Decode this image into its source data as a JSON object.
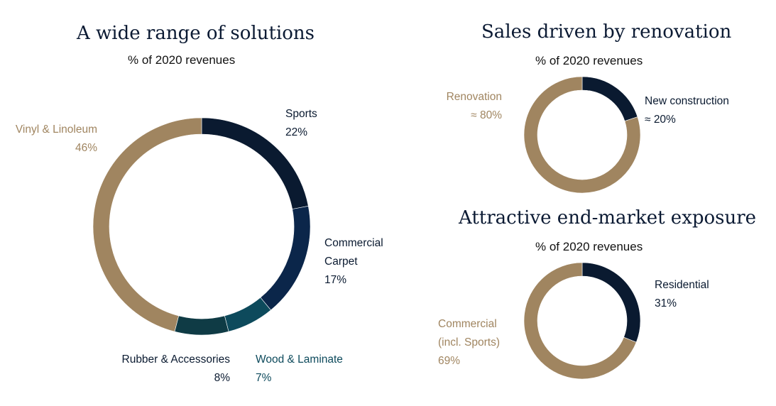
{
  "chart_data": [
    {
      "type": "pie",
      "title": "A wide range of solutions",
      "subtitle": "% of 2020 revenues",
      "slices": [
        {
          "label": [
            "Sports"
          ],
          "value_label": "22%",
          "value": 22,
          "color": "#0a1a30",
          "label_color": "#0a1a30"
        },
        {
          "label": [
            "Commercial",
            "Carpet"
          ],
          "value_label": "17%",
          "value": 17,
          "color": "#0b264a",
          "label_color": "#0a1a30"
        },
        {
          "label": [
            "Wood & Laminate"
          ],
          "value_label": "7%",
          "value": 7,
          "color": "#0d4a5c",
          "label_color": "#0d4a5c"
        },
        {
          "label": [
            "Rubber & Accessories"
          ],
          "value_label": "8%",
          "value": 8,
          "color": "#0f3b45",
          "label_color": "#0a1a30"
        },
        {
          "label": [
            "Vinyl & Linoleum"
          ],
          "value_label": "46%",
          "value": 46,
          "color": "#a08560",
          "label_color": "#a08560"
        }
      ]
    },
    {
      "type": "pie",
      "title": "Sales driven by renovation",
      "subtitle": "% of 2020 revenues",
      "slices": [
        {
          "label": [
            "New construction"
          ],
          "value_label": "≈ 20%",
          "value": 20,
          "color": "#0a1a30",
          "label_color": "#0a1a30"
        },
        {
          "label": [
            "Renovation"
          ],
          "value_label": "≈ 80%",
          "value": 80,
          "color": "#a08560",
          "label_color": "#a08560"
        }
      ]
    },
    {
      "type": "pie",
      "title": "Attractive end-market exposure",
      "subtitle": "% of 2020 revenues",
      "slices": [
        {
          "label": [
            "Residential"
          ],
          "value_label": "31%",
          "value": 31,
          "color": "#0a1a30",
          "label_color": "#0a1a30"
        },
        {
          "label": [
            "Commercial",
            "(incl. Sports)"
          ],
          "value_label": "69%",
          "value": 69,
          "color": "#a08560",
          "label_color": "#a08560"
        }
      ]
    }
  ]
}
